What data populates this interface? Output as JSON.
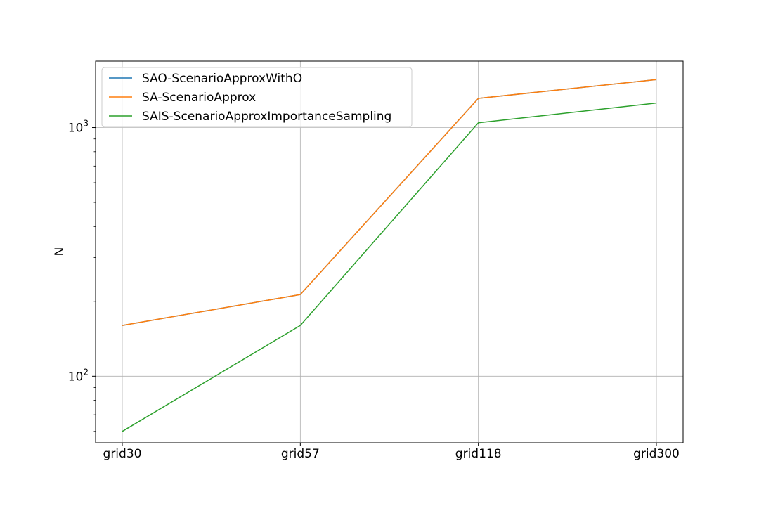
{
  "chart_data": {
    "type": "line",
    "title": "",
    "xlabel": "",
    "ylabel": "N",
    "yscale": "log",
    "ylim": [
      54,
      1850
    ],
    "categories": [
      "grid30",
      "grid57",
      "grid118",
      "grid300"
    ],
    "yticks": [
      {
        "value": 100,
        "base": "10",
        "exp": "2"
      },
      {
        "value": 1000,
        "base": "10",
        "exp": "3"
      }
    ],
    "grid": true,
    "legend_position": "top-left",
    "series": [
      {
        "name": "SAO-ScenarioApproxWithO",
        "color": "#1f77b4",
        "values": [
          160,
          213,
          1310,
          1560
        ]
      },
      {
        "name": "SA-ScenarioApprox",
        "color": "#ff7f0e",
        "values": [
          160,
          213,
          1310,
          1560
        ]
      },
      {
        "name": "SAIS-ScenarioApproxImportanceSampling",
        "color": "#2ca02c",
        "values": [
          60,
          160,
          1045,
          1255
        ]
      }
    ]
  }
}
